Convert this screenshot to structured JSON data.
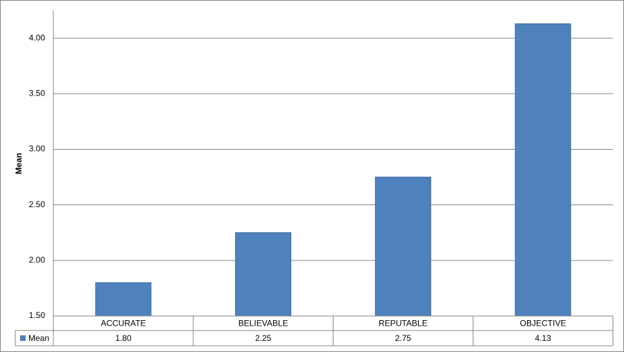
{
  "chart_data": {
    "type": "bar",
    "y_label": "Mean",
    "categories": [
      "ACCURATE",
      "BELIEVABLE",
      "REPUTABLE",
      "OBJECTIVE"
    ],
    "series": [
      {
        "name": "Mean",
        "color": "#4f81bd",
        "values": [
          1.8,
          2.25,
          2.75,
          4.13
        ],
        "value_labels": [
          "1.80",
          "2.25",
          "2.75",
          "4.13"
        ]
      }
    ],
    "ylim": [
      1.5,
      4.25
    ],
    "yticks": [
      {
        "value": 1.5,
        "label": "1.50"
      },
      {
        "value": 2,
        "label": "2.00"
      },
      {
        "value": 2.5,
        "label": "2.50"
      },
      {
        "value": 3,
        "label": "3.00"
      },
      {
        "value": 3.5,
        "label": "3.50"
      },
      {
        "value": 4,
        "label": "4.00"
      }
    ],
    "grid": true
  }
}
